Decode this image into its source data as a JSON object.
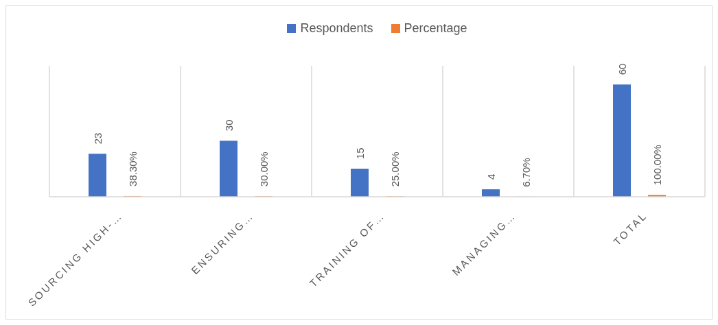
{
  "chart_data": {
    "type": "bar",
    "categories": [
      "SOURCING HIGH-…",
      "ENSURING…",
      "TRAINING OF…",
      "MANAGING…",
      "TOTAL"
    ],
    "series": [
      {
        "name": "Respondents",
        "color": "#4472c4",
        "values": [
          23,
          30,
          15,
          4,
          60
        ],
        "value_labels": [
          "23",
          "30",
          "15",
          "4",
          "60"
        ]
      },
      {
        "name": "Percentage",
        "color": "#ed7d31",
        "values": [
          0.383,
          0.3,
          0.25,
          0.067,
          1
        ],
        "value_labels": [
          "38.30%",
          "30.00%",
          "25.00%",
          "6.70%",
          "100.00%"
        ]
      }
    ],
    "ylim": [
      0,
      70
    ],
    "tick_labels": "x",
    "grid": "x",
    "legend": "top"
  }
}
